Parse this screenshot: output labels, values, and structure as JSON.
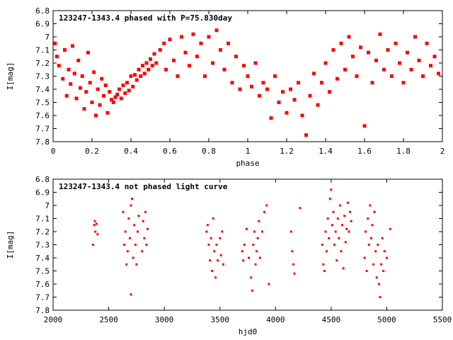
{
  "chart_data": [
    {
      "type": "scatter",
      "title": "123247-1343.4 phased with P=75.830day",
      "xlabel": "phase",
      "ylabel": "I[mag]",
      "xlim": [
        0,
        2
      ],
      "ylim": [
        6.8,
        7.8
      ],
      "y_inverted": true,
      "marker": "filled square",
      "xticks": [
        "0",
        "0.2",
        "0.4",
        "0.6",
        "0.8",
        "1",
        "1.2",
        "1.4",
        "1.6",
        "1.8",
        "2"
      ],
      "yticks": [
        "6.8",
        "6.9",
        "7",
        "7.1",
        "7.2",
        "7.3",
        "7.4",
        "7.5",
        "7.6",
        "7.7",
        "7.8"
      ],
      "grid": false,
      "series": [
        {
          "color": "#ff0000",
          "points": [
            [
              0.01,
              7.05
            ],
            [
              0.02,
              7.15
            ],
            [
              0.03,
              7.22
            ],
            [
              0.05,
              7.32
            ],
            [
              0.06,
              7.1
            ],
            [
              0.07,
              7.45
            ],
            [
              0.08,
              7.25
            ],
            [
              0.09,
              7.36
            ],
            [
              0.1,
              7.07
            ],
            [
              0.11,
              7.28
            ],
            [
              0.12,
              7.47
            ],
            [
              0.13,
              7.18
            ],
            [
              0.14,
              7.39
            ],
            [
              0.15,
              7.3
            ],
            [
              0.16,
              7.55
            ],
            [
              0.17,
              7.42
            ],
            [
              0.18,
              7.12
            ],
            [
              0.19,
              7.35
            ],
            [
              0.2,
              7.5
            ],
            [
              0.21,
              7.27
            ],
            [
              0.22,
              7.6
            ],
            [
              0.23,
              7.4
            ],
            [
              0.24,
              7.52
            ],
            [
              0.25,
              7.32
            ],
            [
              0.26,
              7.45
            ],
            [
              0.27,
              7.37
            ],
            [
              0.28,
              7.58
            ],
            [
              0.29,
              7.42
            ],
            [
              0.3,
              7.48
            ],
            [
              0.31,
              7.5
            ],
            [
              0.32,
              7.46
            ],
            [
              0.33,
              7.44
            ],
            [
              0.34,
              7.4
            ],
            [
              0.35,
              7.47
            ],
            [
              0.36,
              7.37
            ],
            [
              0.37,
              7.43
            ],
            [
              0.38,
              7.35
            ],
            [
              0.39,
              7.41
            ],
            [
              0.4,
              7.3
            ],
            [
              0.41,
              7.38
            ],
            [
              0.42,
              7.29
            ],
            [
              0.43,
              7.33
            ],
            [
              0.44,
              7.25
            ],
            [
              0.45,
              7.3
            ],
            [
              0.46,
              7.22
            ],
            [
              0.47,
              7.28
            ],
            [
              0.48,
              7.2
            ],
            [
              0.49,
              7.25
            ],
            [
              0.5,
              7.17
            ],
            [
              0.51,
              7.22
            ],
            [
              0.52,
              7.13
            ],
            [
              0.53,
              7.2
            ],
            [
              0.55,
              7.1
            ],
            [
              0.57,
              7.05
            ],
            [
              0.58,
              7.25
            ],
            [
              0.6,
              7.02
            ],
            [
              0.62,
              7.18
            ],
            [
              0.64,
              7.3
            ],
            [
              0.66,
              7.0
            ],
            [
              0.68,
              7.12
            ],
            [
              0.7,
              7.22
            ],
            [
              0.72,
              6.98
            ],
            [
              0.74,
              7.15
            ],
            [
              0.76,
              7.05
            ],
            [
              0.78,
              7.3
            ],
            [
              0.8,
              7.0
            ],
            [
              0.82,
              7.2
            ],
            [
              0.84,
              6.95
            ],
            [
              0.86,
              7.1
            ],
            [
              0.88,
              7.25
            ],
            [
              0.9,
              7.05
            ],
            [
              0.92,
              7.35
            ],
            [
              0.94,
              7.15
            ],
            [
              0.96,
              7.4
            ],
            [
              0.98,
              7.22
            ],
            [
              1.0,
              7.3
            ],
            [
              1.02,
              7.38
            ],
            [
              1.04,
              7.2
            ],
            [
              1.06,
              7.45
            ],
            [
              1.08,
              7.35
            ],
            [
              1.1,
              7.4
            ],
            [
              1.12,
              7.62
            ],
            [
              1.14,
              7.3
            ],
            [
              1.16,
              7.5
            ],
            [
              1.18,
              7.42
            ],
            [
              1.2,
              7.58
            ],
            [
              1.22,
              7.4
            ],
            [
              1.24,
              7.48
            ],
            [
              1.26,
              7.35
            ],
            [
              1.28,
              7.6
            ],
            [
              1.3,
              7.75
            ],
            [
              1.32,
              7.45
            ],
            [
              1.34,
              7.28
            ],
            [
              1.36,
              7.52
            ],
            [
              1.38,
              7.35
            ],
            [
              1.4,
              7.2
            ],
            [
              1.42,
              7.42
            ],
            [
              1.44,
              7.1
            ],
            [
              1.46,
              7.32
            ],
            [
              1.48,
              7.05
            ],
            [
              1.5,
              7.25
            ],
            [
              1.52,
              7.0
            ],
            [
              1.54,
              7.15
            ],
            [
              1.56,
              7.3
            ],
            [
              1.58,
              7.08
            ],
            [
              1.6,
              7.68
            ],
            [
              1.62,
              7.12
            ],
            [
              1.64,
              7.35
            ],
            [
              1.66,
              7.18
            ],
            [
              1.68,
              6.98
            ],
            [
              1.7,
              7.25
            ],
            [
              1.72,
              7.1
            ],
            [
              1.74,
              7.3
            ],
            [
              1.76,
              7.05
            ],
            [
              1.78,
              7.2
            ],
            [
              1.8,
              7.35
            ],
            [
              1.82,
              7.12
            ],
            [
              1.84,
              7.25
            ],
            [
              1.86,
              7.0
            ],
            [
              1.88,
              7.18
            ],
            [
              1.9,
              7.3
            ],
            [
              1.92,
              7.05
            ],
            [
              1.94,
              7.22
            ],
            [
              1.96,
              7.15
            ],
            [
              1.98,
              7.28
            ]
          ]
        }
      ]
    },
    {
      "type": "scatter",
      "title": "123247-1343.4 not phased light curve",
      "xlabel": "hjd0",
      "ylabel": "I[mag]",
      "xlim": [
        2000,
        5500
      ],
      "ylim": [
        6.8,
        7.8
      ],
      "y_inverted": true,
      "marker": "small dot",
      "xticks": [
        "2000",
        "2500",
        "3000",
        "3500",
        "4000",
        "4500",
        "5000",
        "5500"
      ],
      "yticks": [
        "6.8",
        "6.9",
        "7",
        "7.1",
        "7.2",
        "7.3",
        "7.4",
        "7.5",
        "7.6",
        "7.7",
        "7.8"
      ],
      "grid": false,
      "series": [
        {
          "color": "#ff0000",
          "points": [
            [
              2360,
              7.3
            ],
            [
              2370,
              7.15
            ],
            [
              2375,
              7.12
            ],
            [
              2380,
              7.2
            ],
            [
              2390,
              7.14
            ],
            [
              2400,
              7.22
            ],
            [
              2630,
              7.05
            ],
            [
              2640,
              7.3
            ],
            [
              2650,
              7.2
            ],
            [
              2660,
              7.45
            ],
            [
              2670,
              7.35
            ],
            [
              2680,
              7.1
            ],
            [
              2690,
              7.25
            ],
            [
              2700,
              7.0
            ],
            [
              2700,
              7.68
            ],
            [
              2710,
              6.95
            ],
            [
              2720,
              7.4
            ],
            [
              2730,
              7.15
            ],
            [
              2740,
              7.3
            ],
            [
              2750,
              7.45
            ],
            [
              2760,
              7.2
            ],
            [
              2770,
              7.08
            ],
            [
              2800,
              7.35
            ],
            [
              2810,
              7.12
            ],
            [
              2820,
              7.25
            ],
            [
              2830,
              7.05
            ],
            [
              2840,
              7.3
            ],
            [
              2850,
              7.18
            ],
            [
              3380,
              7.2
            ],
            [
              3390,
              7.15
            ],
            [
              3400,
              7.3
            ],
            [
              3410,
              7.42
            ],
            [
              3420,
              7.25
            ],
            [
              3430,
              7.5
            ],
            [
              3440,
              7.1
            ],
            [
              3450,
              7.35
            ],
            [
              3460,
              7.55
            ],
            [
              3470,
              7.3
            ],
            [
              3480,
              7.42
            ],
            [
              3500,
              7.25
            ],
            [
              3510,
              7.38
            ],
            [
              3520,
              7.2
            ],
            [
              3530,
              7.45
            ],
            [
              3700,
              7.35
            ],
            [
              3710,
              7.42
            ],
            [
              3720,
              7.3
            ],
            [
              3740,
              7.18
            ],
            [
              3760,
              7.4
            ],
            [
              3780,
              7.55
            ],
            [
              3790,
              7.65
            ],
            [
              3800,
              7.3
            ],
            [
              3810,
              7.2
            ],
            [
              3820,
              7.45
            ],
            [
              3830,
              7.35
            ],
            [
              3840,
              7.25
            ],
            [
              3850,
              7.12
            ],
            [
              3860,
              7.4
            ],
            [
              3880,
              7.2
            ],
            [
              3900,
              7.05
            ],
            [
              3920,
              7.0
            ],
            [
              3940,
              7.6
            ],
            [
              4140,
              7.2
            ],
            [
              4150,
              7.35
            ],
            [
              4160,
              7.45
            ],
            [
              4170,
              7.52
            ],
            [
              4220,
              7.02
            ],
            [
              4420,
              7.3
            ],
            [
              4430,
              7.45
            ],
            [
              4440,
              7.5
            ],
            [
              4450,
              7.2
            ],
            [
              4460,
              7.35
            ],
            [
              4470,
              7.1
            ],
            [
              4480,
              7.25
            ],
            [
              4490,
              6.95
            ],
            [
              4500,
              6.88
            ],
            [
              4510,
              7.15
            ],
            [
              4520,
              7.05
            ],
            [
              4530,
              7.3
            ],
            [
              4540,
              7.2
            ],
            [
              4550,
              7.42
            ],
            [
              4560,
              7.1
            ],
            [
              4570,
              7.25
            ],
            [
              4580,
              7.0
            ],
            [
              4590,
              7.35
            ],
            [
              4600,
              7.15
            ],
            [
              4610,
              7.48
            ],
            [
              4620,
              7.08
            ],
            [
              4630,
              7.28
            ],
            [
              4640,
              7.18
            ],
            [
              4650,
              6.98
            ],
            [
              4660,
              7.2
            ],
            [
              4670,
              7.05
            ],
            [
              4680,
              7.12
            ],
            [
              4800,
              7.4
            ],
            [
              4810,
              7.2
            ],
            [
              4820,
              7.5
            ],
            [
              4830,
              7.1
            ],
            [
              4840,
              7.3
            ],
            [
              4850,
              7.0
            ],
            [
              4860,
              7.25
            ],
            [
              4870,
              7.15
            ],
            [
              4880,
              7.45
            ],
            [
              4890,
              7.05
            ],
            [
              4900,
              7.35
            ],
            [
              4910,
              7.55
            ],
            [
              4920,
              7.3
            ],
            [
              4930,
              7.6
            ],
            [
              4940,
              7.7
            ],
            [
              4950,
              7.45
            ],
            [
              4960,
              7.25
            ],
            [
              4970,
              7.5
            ],
            [
              4980,
              7.35
            ],
            [
              5000,
              7.4
            ],
            [
              5030,
              7.18
            ]
          ]
        }
      ]
    }
  ]
}
